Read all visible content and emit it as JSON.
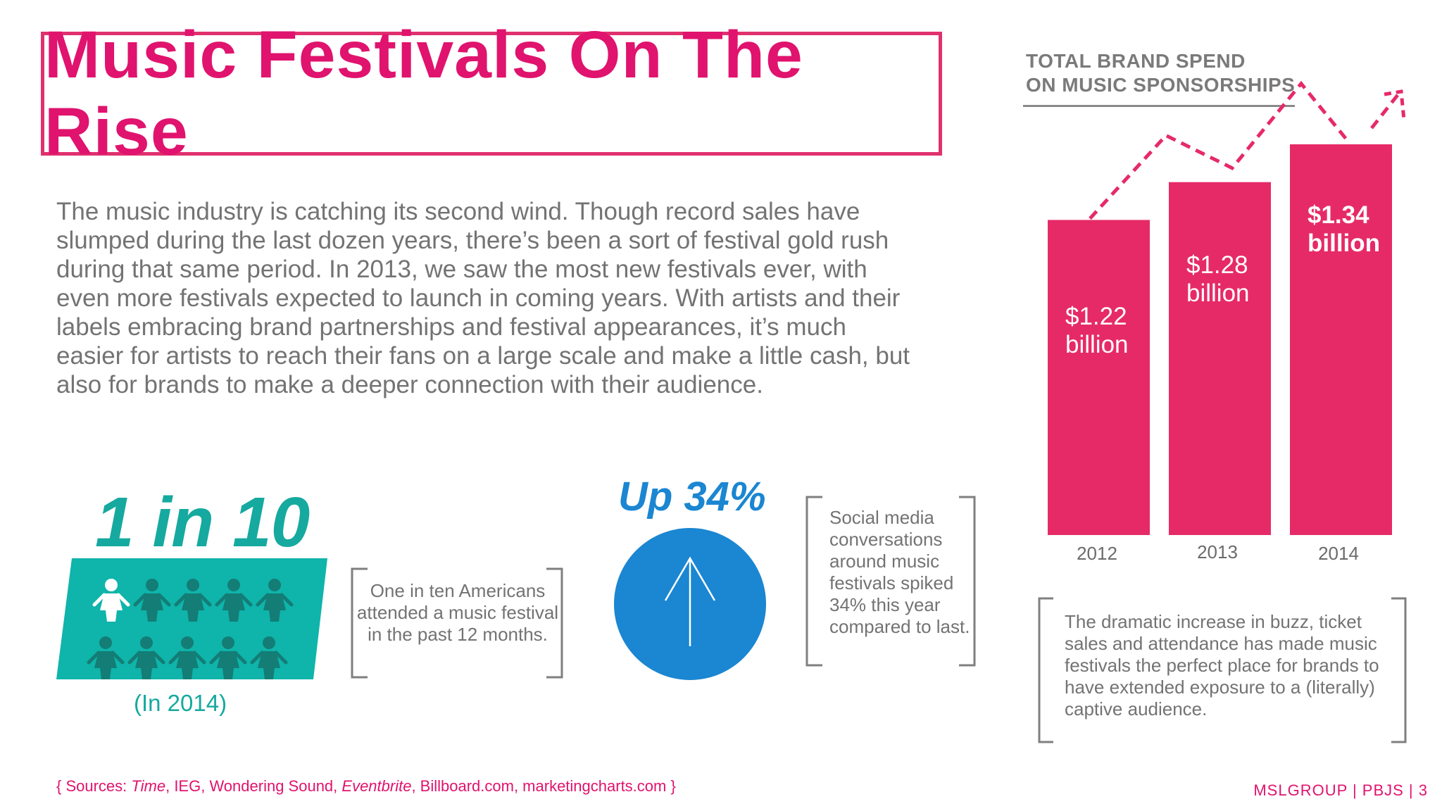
{
  "title": "Music Festivals On The Rise",
  "intro": "The music industry is catching its second wind. Though record sales have slumped during the last dozen years, there’s been a sort of festival gold rush during that same period. In 2013, we saw the most new festivals ever, with even more festivals expected to launch in coming years. With artists and their labels embracing brand partnerships and festival appearances, it’s much easier for artists to reach their fans on a large scale and make a little cash, but also for brands to make a deeper connection with their audience.",
  "chart_header": {
    "line1": "TOTAL BRAND SPEND",
    "line2": "ON MUSIC SPONSORSHIPS"
  },
  "chart_data": {
    "type": "bar",
    "categories": [
      "2012",
      "2013",
      "2014"
    ],
    "values": [
      1.22,
      1.28,
      1.34
    ],
    "labels": [
      {
        "amount": "$1.22",
        "unit": "billion"
      },
      {
        "amount": "$1.28",
        "unit": "billion"
      },
      {
        "amount": "$1.34",
        "unit": "billion"
      }
    ],
    "bar_color": "#e62a68",
    "trend_color": "#e62a68",
    "title": "TOTAL BRAND SPEND ON MUSIC SPONSORSHIPS"
  },
  "stats": {
    "one_in_ten": "1 in 10",
    "one_in_ten_year": "(In 2014)",
    "americans_text": "One in ten Americans attended a music festival in the past 12 months.",
    "people_highlighted": 1,
    "people_total": 10,
    "up_label": "Up 34%",
    "social_text": "Social media conversations around music festivals spiked 34% this year compared to last.",
    "buzz_text": "The dramatic increase in buzz, ticket sales and attendance has made music festivals the perfect place for brands to have extended exposure to a (literally) captive audience."
  },
  "footer": {
    "sources_open": "{ Sources: ",
    "src_time": "Time",
    "src_sep1": ", IEG, Wondering Sound, ",
    "src_eventbrite": "Eventbrite",
    "src_rest": ", Billboard.com, marketingcharts.com }",
    "right": "MSLGROUP | PBJS |  3"
  },
  "colors": {
    "accent_pink": "#e0136e",
    "teal": "#16a99f",
    "teal_panel": "#0fb4aa",
    "blue": "#1b86d1"
  }
}
